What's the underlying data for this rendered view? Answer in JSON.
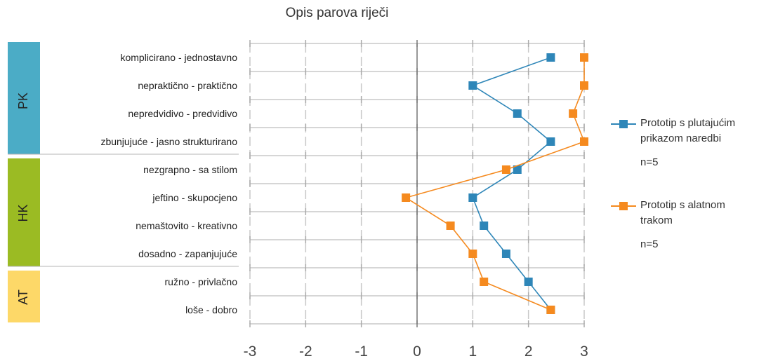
{
  "chart_data": {
    "type": "line",
    "title": "Opis parova riječi",
    "categories": [
      "komplicirano - jednostavno",
      "nepraktično - praktično",
      "nepredvidivo - predvidivo",
      "zbunjujuće - jasno strukturirano",
      "nezgrapno - sa stilom",
      "jeftino - skupocjeno",
      "nemaštovito - kreativno",
      "dosadno - zapanjujuće",
      "ružno - privlačno",
      "loše - dobro"
    ],
    "groups": [
      {
        "label": "PK",
        "color": "#4BACC6",
        "count": 4
      },
      {
        "label": "HK",
        "color": "#9BBB23",
        "count": 4
      },
      {
        "label": "AT",
        "color": "#FDD868",
        "count": 2
      }
    ],
    "xlim": [
      -3,
      3
    ],
    "xticks": [
      "-3",
      "-2",
      "-1",
      "0",
      "1",
      "2",
      "3"
    ],
    "grid": true,
    "legend_position": "right",
    "series": [
      {
        "name": "Prototip s plutajućim prikazom naredbi",
        "color": "#2E86B8",
        "values": [
          2.4,
          1.0,
          1.8,
          2.4,
          1.8,
          1.0,
          1.2,
          1.6,
          2.0,
          2.4
        ]
      },
      {
        "name": "Prototip s alatnom trakom",
        "color": "#F58A1F",
        "values": [
          3.0,
          3.0,
          2.8,
          3.0,
          1.6,
          -0.2,
          0.6,
          1.0,
          1.2,
          2.4
        ]
      }
    ]
  },
  "legend": {
    "items": [
      {
        "line1": "Prototip s plutajućim",
        "line2": "prikazom naredbi",
        "n": "n=5"
      },
      {
        "line1": "Prototip s alatnom",
        "line2": "trakom",
        "n": "n=5"
      }
    ]
  }
}
